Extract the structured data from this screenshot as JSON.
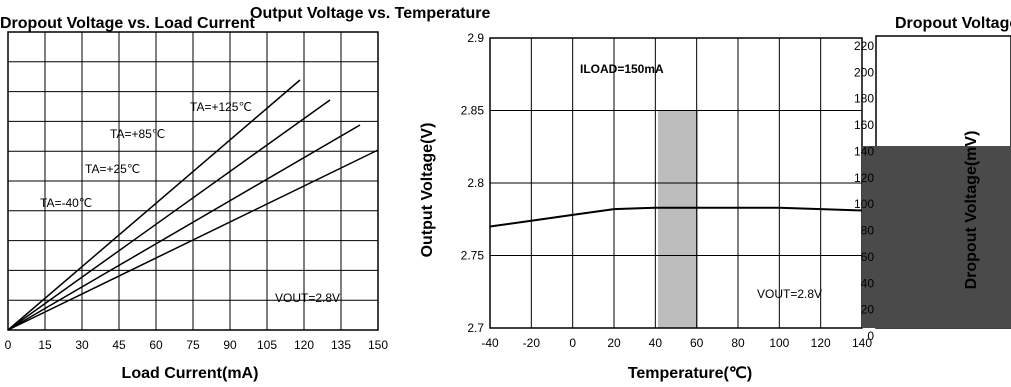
{
  "left_chart": {
    "title": "Dropout Voltage vs. Load Current",
    "xlabel": "Load Current(mA)",
    "x_ticks": [
      "0",
      "15",
      "30",
      "45",
      "60",
      "75",
      "90",
      "105",
      "120",
      "135",
      "150"
    ],
    "annotations": [
      "TA=+125℃",
      "TA=+85℃",
      "TA=+25℃",
      "TA=-40℃",
      "VOUT=2.8V"
    ]
  },
  "chart_data": {
    "type": "line",
    "title": "Output Voltage vs. Temperature",
    "xlabel": "Temperature(℃)",
    "ylabel": "Output Voltage(V)",
    "xlim": [
      -40,
      140
    ],
    "ylim": [
      2.7,
      2.9
    ],
    "x_ticks": [
      "-40",
      "-20",
      "0",
      "20",
      "40",
      "60",
      "80",
      "100",
      "120",
      "140"
    ],
    "y_ticks": [
      "2.7",
      "2.75",
      "2.8",
      "2.85",
      "2.9"
    ],
    "grid": true,
    "annotations": [
      "ILOAD=150mA",
      "VOUT=2.8V"
    ],
    "series": [
      {
        "x": [
          -40,
          -20,
          0,
          20,
          40,
          60,
          80,
          100,
          120,
          140
        ],
        "values": [
          2.77,
          2.774,
          2.778,
          2.782,
          2.783,
          2.783,
          2.783,
          2.783,
          2.782,
          2.781
        ]
      }
    ]
  },
  "right_chart": {
    "title": "Dropout Voltage vs. Temperature",
    "ylabel": "Dropout Voltage(mV)",
    "y_ticks": [
      "0",
      "20",
      "40",
      "60",
      "80",
      "100",
      "120",
      "140",
      "160",
      "180",
      "200",
      "220"
    ]
  }
}
